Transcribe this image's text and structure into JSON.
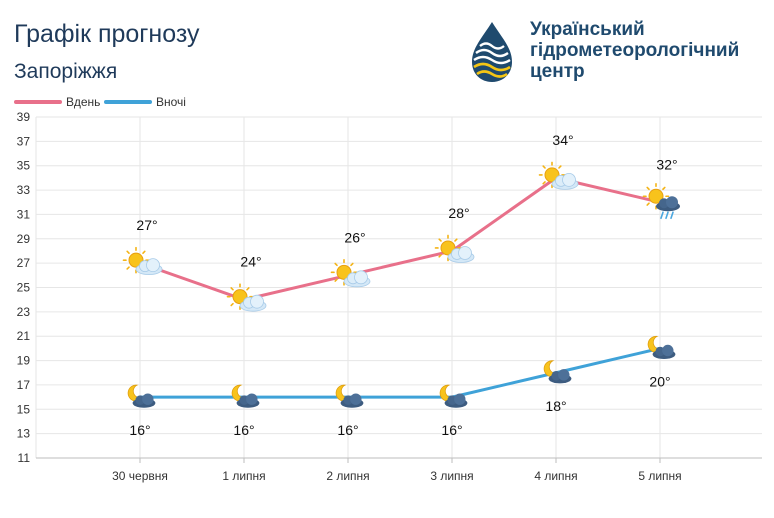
{
  "header": {
    "title": "Графік прогнозу",
    "city": "Запоріжжя",
    "org_lines": [
      "Український",
      "гідрометеорологічний",
      "центр"
    ]
  },
  "colors": {
    "day": "#e8708a",
    "night": "#3fa2d8",
    "grid": "#e6e6e6",
    "text": "#1f3a5a"
  },
  "chart_data": {
    "type": "line",
    "title": "Графік прогнозу",
    "subtitle": "Запоріжжя",
    "categories": [
      "30 червня",
      "1 липня",
      "2 липня",
      "3 липня",
      "4 липня",
      "5 липня"
    ],
    "ylim": [
      11,
      39
    ],
    "yticks": [
      11,
      13,
      15,
      17,
      19,
      21,
      23,
      25,
      27,
      29,
      31,
      33,
      35,
      37,
      39
    ],
    "grid": true,
    "legend_position": "top-left",
    "series": [
      {
        "name": "Вдень",
        "color": "#e8708a",
        "values": [
          27,
          24,
          26,
          28,
          34,
          32
        ],
        "labels": [
          "27°",
          "24°",
          "26°",
          "28°",
          "34°",
          "32°"
        ],
        "icons": [
          "sun-cloud-icon",
          "sun-cloud-icon",
          "sun-cloud-icon",
          "sun-cloud-icon",
          "sun-cloud-icon",
          "sun-rain-cloud-icon"
        ]
      },
      {
        "name": "Вночі",
        "color": "#3fa2d8",
        "values": [
          16,
          16,
          16,
          16,
          18,
          20
        ],
        "labels": [
          "16°",
          "16°",
          "16°",
          "16°",
          "18°",
          "20°"
        ],
        "icons": [
          "moon-cloud-icon",
          "moon-cloud-icon",
          "moon-cloud-icon",
          "moon-cloud-icon",
          "moon-cloud-icon",
          "moon-cloud-icon"
        ]
      }
    ]
  }
}
